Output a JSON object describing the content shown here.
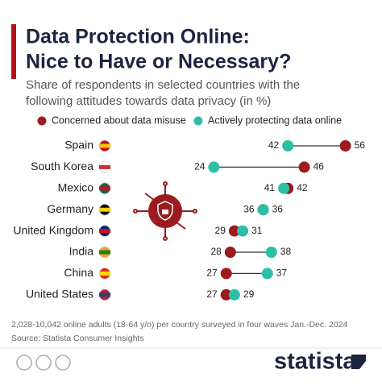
{
  "chart_data": {
    "type": "dumbbell",
    "title": [
      "Data Protection Online:",
      "Nice to Have or Necessary?"
    ],
    "subtitle": [
      "Share of respondents in selected countries with the",
      "following attitudes towards data privacy (in %)"
    ],
    "categories": [
      "Spain",
      "South Korea",
      "Mexico",
      "Germany",
      "United Kingdom",
      "India",
      "China",
      "United States"
    ],
    "series": [
      {
        "name": "Concerned about data misuse",
        "color": "#9b1b1e",
        "values": [
          56,
          46,
          42,
          36,
          29,
          28,
          27,
          27
        ]
      },
      {
        "name": "Actively protecting data online",
        "color": "#2cbfa6",
        "values": [
          42,
          24,
          41,
          36,
          31,
          38,
          37,
          29
        ]
      }
    ],
    "note": "2,028-10,042 online adults (18-64 y/o) per country surveyed in four waves Jan.-Dec. 2024",
    "source": "Source: Statista Consumer Insights",
    "logo": "statista"
  }
}
